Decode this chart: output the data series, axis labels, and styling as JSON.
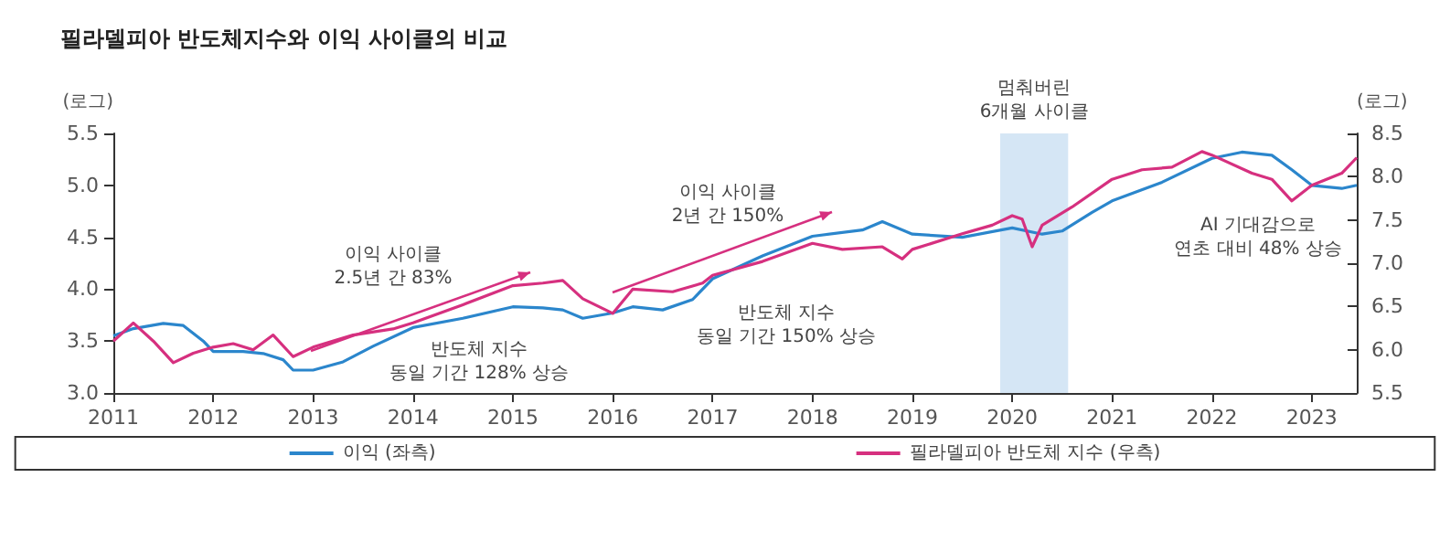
{
  "chart_data": {
    "type": "line",
    "title": "필라델피아 반도체지수와 이익 사이클의 비교",
    "ylabel": "(로그)",
    "y2label": "(로그)",
    "xlim": [
      2011,
      2023.45
    ],
    "xticks": [
      2011,
      2012,
      2013,
      2014,
      2015,
      2016,
      2017,
      2018,
      2019,
      2020,
      2021,
      2022,
      2023
    ],
    "ylim": [
      3.0,
      5.5
    ],
    "yticks": [
      {
        "value": 3.0,
        "label": "3.0"
      },
      3.5,
      {
        "value": 4.0,
        "label": "4.0"
      },
      4.5,
      {
        "value": 5.0,
        "label": "5.0"
      },
      5.5
    ],
    "y2lim": [
      5.5,
      8.5
    ],
    "y2ticks": [
      5.5,
      {
        "value": 6.0,
        "label": "6.0"
      },
      6.5,
      {
        "value": 7.0,
        "label": "7.0"
      },
      7.5,
      {
        "value": 8.0,
        "label": "8.0"
      },
      8.5
    ],
    "grid": false,
    "legend": "bottom",
    "marker": "none",
    "line_style": "solid",
    "series": [
      {
        "name": "이익 (좌측)",
        "color": "#2b86cc",
        "x": [
          2011.0,
          2011.2,
          2011.5,
          2011.7,
          2011.9,
          2012.0,
          2012.3,
          2012.5,
          2012.7,
          2012.8,
          2013.0,
          2013.3,
          2013.6,
          2014.0,
          2014.5,
          2015.0,
          2015.3,
          2015.5,
          2015.7,
          2016.0,
          2016.2,
          2016.5,
          2016.8,
          2017.0,
          2017.5,
          2018.0,
          2018.5,
          2018.7,
          2019.0,
          2019.5,
          2020.0,
          2020.3,
          2020.5,
          2020.8,
          2021.0,
          2021.5,
          2022.0,
          2022.3,
          2022.6,
          2022.8,
          2023.0,
          2023.3,
          2023.45
        ],
        "values": [
          3.55,
          3.62,
          3.67,
          3.65,
          3.5,
          3.4,
          3.4,
          3.38,
          3.32,
          3.22,
          3.22,
          3.3,
          3.45,
          3.63,
          3.72,
          3.83,
          3.82,
          3.8,
          3.72,
          3.77,
          3.83,
          3.8,
          3.9,
          4.1,
          4.32,
          4.51,
          4.57,
          4.65,
          4.53,
          4.5,
          4.59,
          4.53,
          4.56,
          4.74,
          4.85,
          5.03,
          5.26,
          5.32,
          5.29,
          5.15,
          5.0,
          4.97,
          5.0
        ]
      },
      {
        "name": "필라델피아 반도체 지수 (우측)",
        "color": "#d6307f",
        "axis": "y2",
        "x": [
          2011.0,
          2011.2,
          2011.4,
          2011.6,
          2011.8,
          2012.0,
          2012.2,
          2012.4,
          2012.6,
          2012.8,
          2013.0,
          2013.4,
          2013.8,
          2014.0,
          2014.5,
          2015.0,
          2015.3,
          2015.5,
          2015.7,
          2016.0,
          2016.2,
          2016.6,
          2016.9,
          2017.0,
          2017.5,
          2018.0,
          2018.3,
          2018.7,
          2018.9,
          2019.0,
          2019.5,
          2019.8,
          2020.0,
          2020.1,
          2020.2,
          2020.3,
          2020.6,
          2021.0,
          2021.3,
          2021.6,
          2021.9,
          2022.0,
          2022.4,
          2022.6,
          2022.8,
          2023.0,
          2023.3,
          2023.45
        ],
        "values": [
          6.1,
          6.31,
          6.1,
          5.85,
          5.96,
          6.03,
          6.07,
          6.0,
          6.17,
          5.92,
          6.03,
          6.17,
          6.24,
          6.31,
          6.52,
          6.74,
          6.77,
          6.8,
          6.59,
          6.42,
          6.7,
          6.67,
          6.77,
          6.86,
          7.02,
          7.23,
          7.16,
          7.19,
          7.05,
          7.16,
          7.34,
          7.44,
          7.55,
          7.51,
          7.19,
          7.44,
          7.65,
          7.97,
          8.08,
          8.11,
          8.29,
          8.25,
          8.04,
          7.97,
          7.72,
          7.9,
          8.04,
          8.22
        ]
      }
    ],
    "bands": [
      {
        "axis": "x",
        "from": 2019.88,
        "to": 2020.56,
        "label": "멈춰버린\n6개월 사이클",
        "color": "#d5e6f5"
      }
    ],
    "annotations": [
      "이익 사이클\n2.5년 간 83%",
      "반도체 지수\n동일 기간 128% 상승",
      "이익 사이클\n2년 간 150%",
      "반도체 지수\n동일 기간 150% 상승",
      "AI 기대감으로\n연초 대비 48% 상승"
    ]
  }
}
